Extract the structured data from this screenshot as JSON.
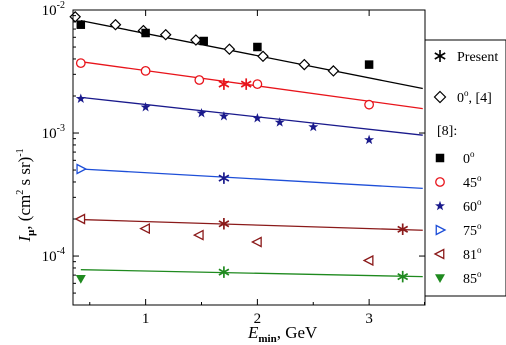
{
  "chart_data": {
    "type": "scatter",
    "title": "",
    "xlabel": {
      "main": "E",
      "sub": "min",
      "unit": ", GeV"
    },
    "ylabel": {
      "main": "I",
      "sub": "μ",
      "unit": ", (cm",
      "sup": "2",
      "unit2": " s sr)",
      "sup2": "-1"
    },
    "xlim": [
      0.35,
      3.5
    ],
    "ylim": [
      4e-05,
      0.01
    ],
    "yscale": "log",
    "grid": false,
    "xticks": [
      {
        "value": 1,
        "label": "1"
      },
      {
        "value": 2,
        "label": "2"
      },
      {
        "value": 3,
        "label": "3"
      }
    ],
    "yticks": [
      {
        "value": 0.0001,
        "base": "10",
        "exp": "-4"
      },
      {
        "value": 0.001,
        "base": "10",
        "exp": "-3"
      },
      {
        "value": 0.01,
        "base": "10",
        "exp": "-2"
      }
    ],
    "legend": {
      "placement": "right",
      "present_label": "Present",
      "ref4_label": "0",
      "ref4_sup": "o",
      "ref4_suffix": ", [4]",
      "group_label": "[8]:",
      "entries": [
        {
          "label": "0",
          "sup": "o",
          "marker": "square",
          "color": "#000000"
        },
        {
          "label": "45",
          "sup": "o",
          "marker": "circle",
          "color": "#e8141b"
        },
        {
          "label": "60",
          "sup": "o",
          "marker": "star",
          "color": "#1a1a8c"
        },
        {
          "label": "75",
          "sup": "o",
          "marker": "triangle-right",
          "color": "#1e4fd8"
        },
        {
          "label": "81",
          "sup": "o",
          "marker": "triangle-left",
          "color": "#8b1a1a"
        },
        {
          "label": "85",
          "sup": "o",
          "marker": "triangle-down",
          "color": "#1f8a1f"
        }
      ]
    },
    "fit_lines": [
      {
        "color": "#000000",
        "x": [
          0.42,
          3.48
        ],
        "y": [
          0.0082,
          0.0023
        ]
      },
      {
        "color": "#e8141b",
        "x": [
          0.42,
          3.48
        ],
        "y": [
          0.0038,
          0.00158
        ]
      },
      {
        "color": "#1a1a8c",
        "x": [
          0.42,
          3.48
        ],
        "y": [
          0.00195,
          0.00096
        ]
      },
      {
        "color": "#1e4fd8",
        "x": [
          0.42,
          3.48
        ],
        "y": [
          0.00051,
          0.000355
        ]
      },
      {
        "color": "#8b1a1a",
        "x": [
          0.42,
          3.48
        ],
        "y": [
          0.000198,
          0.000162
        ]
      },
      {
        "color": "#1f8a1f",
        "x": [
          0.42,
          3.48
        ],
        "y": [
          7.75e-05,
          6.8e-05
        ]
      }
    ],
    "series": [
      {
        "group": "ref4",
        "marker": "diamond",
        "color": "#000000",
        "x": [
          0.37,
          0.73,
          0.98,
          1.18,
          1.45,
          1.75,
          2.05,
          2.42,
          2.68
        ],
        "y": [
          0.0088,
          0.0076,
          0.0068,
          0.0063,
          0.0057,
          0.0048,
          0.0042,
          0.0036,
          0.0032
        ]
      },
      {
        "group": "ref8",
        "marker": "square",
        "color": "#000000",
        "x": [
          0.42,
          1.0,
          1.52,
          2.0,
          3.0
        ],
        "y": [
          0.0076,
          0.0065,
          0.0056,
          0.005,
          0.0036
        ]
      },
      {
        "group": "ref8",
        "marker": "circle",
        "color": "#e8141b",
        "x": [
          0.42,
          1.0,
          1.48,
          2.0,
          3.0
        ],
        "y": [
          0.0037,
          0.0032,
          0.0027,
          0.0025,
          0.0017
        ]
      },
      {
        "group": "ref8",
        "marker": "star",
        "color": "#1a1a8c",
        "x": [
          0.42,
          1.0,
          1.5,
          1.7,
          2.0,
          2.2,
          2.5,
          3.0
        ],
        "y": [
          0.0019,
          0.00162,
          0.00145,
          0.00137,
          0.00132,
          0.00122,
          0.00112,
          0.00088
        ]
      },
      {
        "group": "ref8",
        "marker": "triangle-right",
        "color": "#1e4fd8",
        "x": [
          0.42
        ],
        "y": [
          0.00051
        ]
      },
      {
        "group": "ref8",
        "marker": "triangle-left",
        "color": "#8b1a1a",
        "x": [
          0.42,
          1.0,
          1.48,
          2.0,
          3.0
        ],
        "y": [
          0.0002,
          0.000167,
          0.000148,
          0.00013,
          9.2e-05
        ]
      },
      {
        "group": "ref8",
        "marker": "triangle-down",
        "color": "#1f8a1f",
        "x": [
          0.42
        ],
        "y": [
          6.55e-05
        ]
      },
      {
        "group": "present",
        "marker": "asterisk",
        "color": "#e8141b",
        "x": [
          1.7,
          1.9
        ],
        "y": [
          0.0025,
          0.0025
        ]
      },
      {
        "group": "present",
        "marker": "asterisk",
        "color": "#1a1a8c",
        "x": [
          1.7
        ],
        "y": [
          0.00043
        ]
      },
      {
        "group": "present",
        "marker": "asterisk",
        "color": "#8b1a1a",
        "x": [
          1.7,
          3.3
        ],
        "y": [
          0.000183,
          0.000165
        ]
      },
      {
        "group": "present",
        "marker": "asterisk",
        "color": "#1f8a1f",
        "x": [
          1.7,
          3.3
        ],
        "y": [
          7.4e-05,
          6.8e-05
        ]
      }
    ]
  }
}
